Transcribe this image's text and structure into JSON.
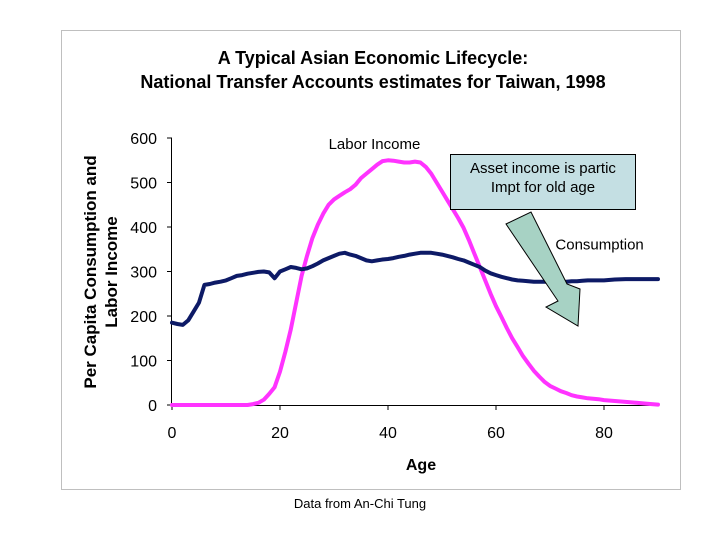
{
  "source_note": "Data from An-Chi Tung",
  "callout": {
    "line1": "Asset income is partic",
    "line2": "Impt for old age"
  },
  "colors": {
    "labor": "#ff33ff",
    "consumption": "#0d1a66",
    "callout_fill": "#c4dfe3",
    "arrow_fill": "#a7d2c4"
  },
  "chart_data": {
    "type": "line",
    "title": "A Typical Asian Economic Lifecycle:",
    "subtitle": "National Transfer Accounts estimates for Taiwan, 1998",
    "xlabel": "Age",
    "ylabel_line1": "Per Capita Consumption and",
    "ylabel_line2": "Labor Income",
    "xlim": [
      0,
      90
    ],
    "ylim": [
      0,
      600
    ],
    "xticks": [
      0,
      20,
      40,
      60,
      80
    ],
    "yticks": [
      0,
      100,
      200,
      300,
      400,
      500,
      600
    ],
    "grid": false,
    "legend": "none",
    "series": [
      {
        "name": "Labor Income",
        "x": [
          0,
          14,
          15,
          16,
          17,
          18,
          19,
          20,
          21,
          22,
          23,
          24,
          25,
          26,
          27,
          28,
          29,
          30,
          31,
          32,
          33,
          34,
          35,
          36,
          37,
          38,
          39,
          40,
          41,
          42,
          43,
          44,
          45,
          46,
          47,
          48,
          49,
          50,
          51,
          52,
          53,
          54,
          55,
          56,
          57,
          58,
          59,
          60,
          61,
          62,
          63,
          64,
          65,
          66,
          67,
          68,
          69,
          70,
          71,
          72,
          73,
          74,
          75,
          76,
          77,
          78,
          79,
          80,
          82,
          84,
          86,
          88,
          90
        ],
        "values": [
          0,
          0,
          2,
          5,
          12,
          25,
          40,
          75,
          120,
          170,
          230,
          290,
          335,
          375,
          405,
          430,
          450,
          462,
          470,
          478,
          485,
          495,
          510,
          520,
          530,
          540,
          548,
          550,
          549,
          547,
          545,
          545,
          547,
          545,
          535,
          520,
          500,
          480,
          460,
          440,
          420,
          398,
          370,
          340,
          310,
          280,
          250,
          222,
          198,
          173,
          150,
          130,
          110,
          93,
          77,
          64,
          52,
          43,
          37,
          31,
          27,
          22,
          19,
          17,
          15,
          14,
          13,
          11,
          9,
          7,
          5,
          3,
          1
        ]
      },
      {
        "name": "Consumption",
        "x": [
          0,
          1,
          2,
          3,
          4,
          5,
          6,
          7,
          8,
          9,
          10,
          11,
          12,
          13,
          14,
          15,
          16,
          17,
          18,
          19,
          20,
          21,
          22,
          23,
          24,
          25,
          26,
          27,
          28,
          29,
          30,
          31,
          32,
          33,
          34,
          35,
          36,
          37,
          38,
          39,
          40,
          41,
          42,
          43,
          44,
          45,
          46,
          47,
          48,
          49,
          50,
          51,
          52,
          53,
          54,
          55,
          56,
          57,
          58,
          59,
          60,
          61,
          62,
          63,
          64,
          65,
          66,
          67,
          68,
          69,
          70,
          71,
          72,
          73,
          74,
          75,
          76,
          77,
          78,
          79,
          80,
          82,
          84,
          86,
          88,
          90
        ],
        "values": [
          185,
          182,
          180,
          190,
          210,
          230,
          270,
          272,
          275,
          277,
          280,
          285,
          290,
          292,
          295,
          297,
          299,
          300,
          298,
          285,
          300,
          305,
          310,
          308,
          305,
          307,
          312,
          318,
          325,
          330,
          335,
          340,
          342,
          338,
          335,
          330,
          325,
          323,
          325,
          327,
          328,
          330,
          333,
          335,
          338,
          340,
          342,
          342,
          342,
          340,
          338,
          335,
          332,
          328,
          325,
          320,
          315,
          310,
          302,
          296,
          292,
          288,
          285,
          282,
          280,
          279,
          278,
          277,
          277,
          277,
          277,
          277,
          277,
          277,
          278,
          278,
          279,
          280,
          280,
          280,
          280,
          282,
          283,
          283,
          283,
          283
        ]
      }
    ],
    "annotations": [
      {
        "text": "Labor Income",
        "x": 29,
        "y": 575
      },
      {
        "text": "Consumption",
        "x": 71,
        "y": 350
      }
    ]
  }
}
